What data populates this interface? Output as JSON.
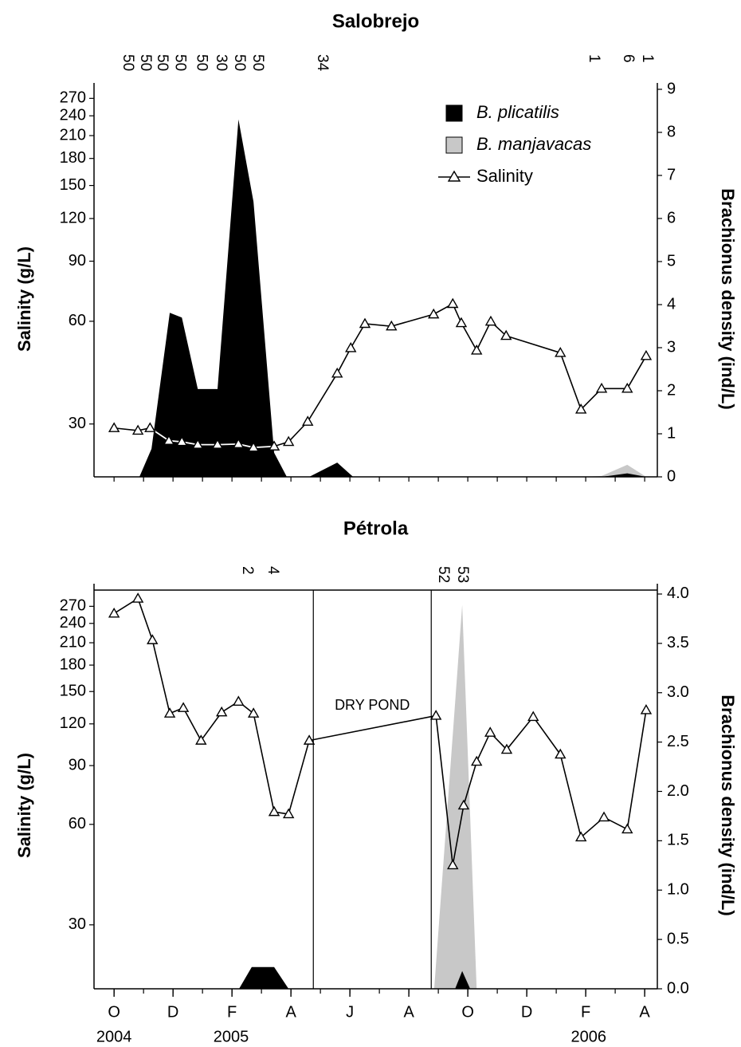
{
  "chart_data": [
    {
      "type": "line",
      "title": "Salobrejo",
      "y_label": "Salinity (g/L)",
      "y2_label": "Brachionus density (ind/L)",
      "xlim": [
        -0.68,
        18.43
      ],
      "ylim": [
        21,
        287
      ],
      "yscale": "log",
      "yticks": [
        30,
        60,
        90,
        120,
        150,
        180,
        210,
        240,
        270
      ],
      "y2lim": [
        0,
        9
      ],
      "y2ticks": [
        0,
        1,
        2,
        3,
        4,
        5,
        6,
        7,
        8,
        9
      ],
      "legend": "upper right",
      "n_labels": {
        "x": [
          0.46,
          1.05,
          1.62,
          2.22,
          2.95,
          3.62,
          4.24,
          4.86,
          7.05,
          16.27,
          17.43,
          18.08
        ],
        "values": [
          50,
          50,
          50,
          50,
          50,
          30,
          50,
          50,
          34,
          1,
          6,
          1
        ]
      },
      "series": [
        {
          "name": "B. manjavacas",
          "type": "area",
          "axis": "y2",
          "color": "#c8c8c8",
          "x": [
            0.86,
            1.27,
            1.89,
            2.3,
            2.84,
            15.97,
            16.54,
            17.41,
            18.05
          ],
          "values": [
            0,
            0,
            0.07,
            0.05,
            0,
            0,
            0.02,
            0.28,
            0
          ]
        },
        {
          "name": "B. plicatilis",
          "type": "area",
          "axis": "y2",
          "color": "#000000",
          "x": [
            0.86,
            1.27,
            1.89,
            2.3,
            2.84,
            3.51,
            4.22,
            4.73,
            5.43,
            5.86,
            6.62,
            7.57,
            8.11,
            15.97,
            16.54,
            17.41,
            18.05
          ],
          "values": [
            0,
            0.65,
            3.81,
            3.7,
            2.04,
            2.04,
            8.3,
            6.39,
            0.56,
            0,
            0,
            0.33,
            0,
            0,
            0,
            0.08,
            0
          ]
        },
        {
          "name": "Salinity",
          "type": "line",
          "marker": "triangle",
          "color": "#000000",
          "x": [
            0,
            0.81,
            1.22,
            1.86,
            2.3,
            2.84,
            3.51,
            4.22,
            4.73,
            5.43,
            5.92,
            6.57,
            7.57,
            8.03,
            8.51,
            9.41,
            10.84,
            11.49,
            11.78,
            12.3,
            12.78,
            13.3,
            15.14,
            15.84,
            16.54,
            17.41,
            18.05
          ],
          "values": [
            29.2,
            28.7,
            29.2,
            26.8,
            26.6,
            26.1,
            26.1,
            26.2,
            25.6,
            25.8,
            26.6,
            30.5,
            42.2,
            50.1,
            59.0,
            58.0,
            62.9,
            67.5,
            59.3,
            49.3,
            59.9,
            54.4,
            48.5,
            33.1,
            38.1,
            38.1,
            47.5
          ]
        }
      ]
    },
    {
      "type": "line",
      "title": "Pétrola",
      "y_label": "Salinity (g/L)",
      "y2_label": "Brachionus density (ind/L)",
      "xlim": [
        -0.68,
        18.43
      ],
      "ylim": [
        19.3,
        302
      ],
      "yscale": "log",
      "yticks": [
        30,
        60,
        90,
        120,
        150,
        180,
        210,
        240,
        270
      ],
      "y2lim": [
        0,
        4.04
      ],
      "y2ticks": [
        {
          "value": 0,
          "label": "0.0"
        },
        0.5,
        {
          "value": 1,
          "label": "1.0"
        },
        1.5,
        {
          "value": 2,
          "label": "2.0"
        },
        2.5,
        {
          "value": 3,
          "label": "3.0"
        },
        3.5,
        {
          "value": 4,
          "label": "4.0"
        }
      ],
      "xticks": [
        {
          "value": 0,
          "label": "O"
        },
        {
          "value": 2,
          "label": "D"
        },
        {
          "value": 4,
          "label": "F"
        },
        {
          "value": 6,
          "label": "A"
        },
        {
          "value": 8,
          "label": "J"
        },
        {
          "value": 10,
          "label": "A"
        },
        {
          "value": 12,
          "label": "O"
        },
        {
          "value": 14,
          "label": "D"
        },
        {
          "value": 16,
          "label": "F"
        },
        {
          "value": 18,
          "label": "A"
        }
      ],
      "year_labels": [
        {
          "value": 0,
          "label": "2004"
        },
        {
          "value": 3.97,
          "label": "2005"
        },
        {
          "value": 16.1,
          "label": "2006"
        }
      ],
      "dry_period": [
        6.76,
        10.76
      ],
      "annotation": {
        "x": 8.76,
        "text": "DRY POND"
      },
      "n_labels": {
        "x": [
          4.51,
          5.38,
          11.16,
          11.81
        ],
        "values": [
          2,
          4,
          52,
          53
        ]
      },
      "series": [
        {
          "type": "area",
          "axis": "y2",
          "color": "#c8c8c8",
          "x": [
            4.24,
            4.67,
            5.43,
            5.92,
            10.86,
            11.57,
            11.81,
            12.08,
            12.3
          ],
          "values": [
            0,
            0,
            0.05,
            0,
            0,
            2.9,
            3.89,
            1.75,
            0
          ]
        },
        {
          "type": "area",
          "axis": "y2",
          "color": "#000000",
          "x": [
            4.24,
            4.67,
            5.43,
            5.92,
            10.86,
            11.57,
            11.81,
            12.08,
            12.3
          ],
          "values": [
            0,
            0.22,
            0.22,
            0,
            0,
            0,
            0.18,
            0,
            0
          ]
        },
        {
          "type": "line",
          "marker": "triangle",
          "color": "#000000",
          "x": [
            0,
            0.81,
            1.3,
            1.89,
            2.35,
            2.95,
            3.65,
            4.22,
            4.73,
            5.43,
            5.92,
            6.62,
            10.92,
            11.49,
            11.86,
            12.3,
            12.76,
            13.32,
            14.22,
            15.14,
            15.84,
            16.62,
            17.41,
            18.05
          ],
          "values": [
            257,
            285,
            214,
            129,
            134,
            107,
            130,
            140,
            129,
            65.4,
            64.4,
            107,
            127,
            45.3,
            68.4,
            92.5,
            113,
            100.5,
            126,
            97.2,
            54.9,
            63,
            58,
            132
          ]
        }
      ]
    }
  ]
}
